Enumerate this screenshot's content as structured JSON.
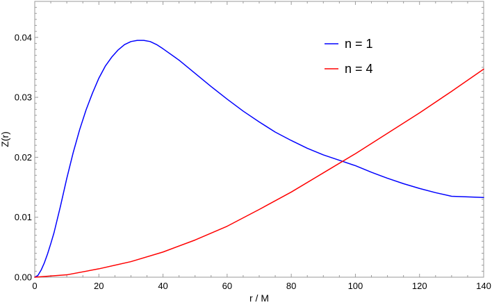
{
  "chart_data": {
    "type": "line",
    "xlabel": "r / M",
    "ylabel": "Z(r)",
    "xlim": [
      0,
      140
    ],
    "ylim": [
      0,
      0.046
    ],
    "x_ticks": [
      0,
      20,
      40,
      60,
      80,
      100,
      120,
      140
    ],
    "x_tick_labels": [
      "0",
      "20",
      "40",
      "60",
      "80",
      "100",
      "120",
      "140"
    ],
    "y_ticks": [
      0,
      0.01,
      0.02,
      0.03,
      0.04
    ],
    "y_tick_labels": [
      "0.00",
      "0.01",
      "0.02",
      "0.03",
      "0.04"
    ],
    "grid": false,
    "legend_position": "top-right",
    "series": [
      {
        "name": "n = 1",
        "color": "#0000ff",
        "x": [
          0,
          1,
          2,
          3,
          4,
          5,
          6,
          8,
          10,
          12,
          14,
          16,
          18,
          20,
          22,
          24,
          26,
          28,
          30,
          32,
          34,
          36,
          38,
          40,
          45,
          50,
          55,
          60,
          65,
          70,
          75,
          80,
          85,
          90,
          95,
          100,
          105,
          110,
          115,
          120,
          125,
          130,
          135,
          140
        ],
        "y": [
          0,
          0.0003,
          0.0012,
          0.0024,
          0.0039,
          0.0056,
          0.0074,
          0.0118,
          0.0165,
          0.0208,
          0.0246,
          0.0279,
          0.0307,
          0.0332,
          0.0352,
          0.0367,
          0.0379,
          0.0388,
          0.0393,
          0.0395,
          0.0395,
          0.0393,
          0.0388,
          0.0381,
          0.0362,
          0.034,
          0.0318,
          0.0297,
          0.0277,
          0.0259,
          0.0242,
          0.0228,
          0.0215,
          0.0204,
          0.0195,
          0.0186,
          0.0175,
          0.0165,
          0.0156,
          0.0148,
          0.0141,
          0.0135,
          0.0134,
          0.0133
        ]
      },
      {
        "name": "n = 4",
        "color": "#ff0000",
        "x": [
          0,
          10,
          20,
          30,
          40,
          50,
          60,
          70,
          80,
          90,
          100,
          110,
          120,
          130,
          140
        ],
        "y": [
          0,
          0.0004,
          0.0014,
          0.0026,
          0.0042,
          0.0062,
          0.0085,
          0.0113,
          0.0142,
          0.0174,
          0.0206,
          0.024,
          0.0274,
          0.031,
          0.0347
        ]
      }
    ]
  }
}
